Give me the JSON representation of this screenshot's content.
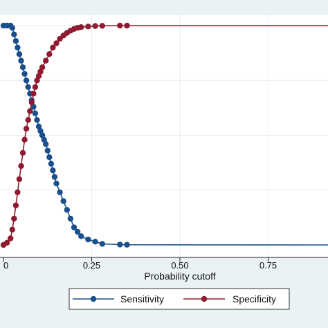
{
  "chart_data": {
    "type": "line",
    "xlabel": "Probability cutoff",
    "ylabel": "",
    "xlim": [
      0,
      0.92
    ],
    "ylim": [
      0,
      1
    ],
    "x_ticks": [
      0,
      0.25,
      0.5,
      0.75
    ],
    "x_tick_labels": [
      "0",
      "0.25",
      "0.50",
      "0.75"
    ],
    "grid": true,
    "legend_position": "bottom",
    "series": [
      {
        "name": "Sensitivity",
        "color": "#1a4f8c",
        "points": [
          [
            0.0,
            1.0
          ],
          [
            0.01,
            1.0
          ],
          [
            0.02,
            1.0
          ],
          [
            0.025,
            0.99
          ],
          [
            0.03,
            0.96
          ],
          [
            0.035,
            0.93
          ],
          [
            0.04,
            0.9
          ],
          [
            0.045,
            0.87
          ],
          [
            0.05,
            0.84
          ],
          [
            0.055,
            0.81
          ],
          [
            0.06,
            0.78
          ],
          [
            0.065,
            0.75
          ],
          [
            0.07,
            0.72
          ],
          [
            0.075,
            0.69
          ],
          [
            0.08,
            0.66
          ],
          [
            0.085,
            0.63
          ],
          [
            0.09,
            0.6
          ],
          [
            0.095,
            0.57
          ],
          [
            0.1,
            0.54
          ],
          [
            0.105,
            0.52
          ],
          [
            0.11,
            0.5
          ],
          [
            0.115,
            0.48
          ],
          [
            0.12,
            0.46
          ],
          [
            0.125,
            0.43
          ],
          [
            0.13,
            0.4
          ],
          [
            0.135,
            0.37
          ],
          [
            0.14,
            0.34
          ],
          [
            0.145,
            0.31
          ],
          [
            0.15,
            0.28
          ],
          [
            0.16,
            0.24
          ],
          [
            0.17,
            0.2
          ],
          [
            0.18,
            0.16
          ],
          [
            0.19,
            0.12
          ],
          [
            0.2,
            0.08
          ],
          [
            0.21,
            0.06
          ],
          [
            0.22,
            0.04
          ],
          [
            0.24,
            0.025
          ],
          [
            0.26,
            0.015
          ],
          [
            0.28,
            0.005
          ],
          [
            0.33,
            0.002
          ],
          [
            0.35,
            0.001
          ],
          [
            0.92,
            0.0
          ]
        ]
      },
      {
        "name": "Specificity",
        "color": "#8e1b30",
        "points": [
          [
            0.0,
            0.0
          ],
          [
            0.01,
            0.01
          ],
          [
            0.02,
            0.03
          ],
          [
            0.025,
            0.07
          ],
          [
            0.03,
            0.12
          ],
          [
            0.035,
            0.18
          ],
          [
            0.04,
            0.24
          ],
          [
            0.045,
            0.3
          ],
          [
            0.05,
            0.36
          ],
          [
            0.055,
            0.42
          ],
          [
            0.06,
            0.48
          ],
          [
            0.065,
            0.53
          ],
          [
            0.07,
            0.57
          ],
          [
            0.075,
            0.61
          ],
          [
            0.08,
            0.65
          ],
          [
            0.085,
            0.69
          ],
          [
            0.09,
            0.72
          ],
          [
            0.095,
            0.75
          ],
          [
            0.1,
            0.77
          ],
          [
            0.105,
            0.79
          ],
          [
            0.11,
            0.81
          ],
          [
            0.12,
            0.84
          ],
          [
            0.13,
            0.87
          ],
          [
            0.14,
            0.9
          ],
          [
            0.15,
            0.92
          ],
          [
            0.16,
            0.94
          ],
          [
            0.17,
            0.955
          ],
          [
            0.18,
            0.967
          ],
          [
            0.19,
            0.977
          ],
          [
            0.2,
            0.985
          ],
          [
            0.21,
            0.99
          ],
          [
            0.22,
            0.993
          ],
          [
            0.24,
            0.996
          ],
          [
            0.26,
            0.998
          ],
          [
            0.28,
            0.999
          ],
          [
            0.33,
            1.0
          ],
          [
            0.35,
            1.0
          ],
          [
            0.92,
            1.0
          ]
        ]
      }
    ]
  }
}
